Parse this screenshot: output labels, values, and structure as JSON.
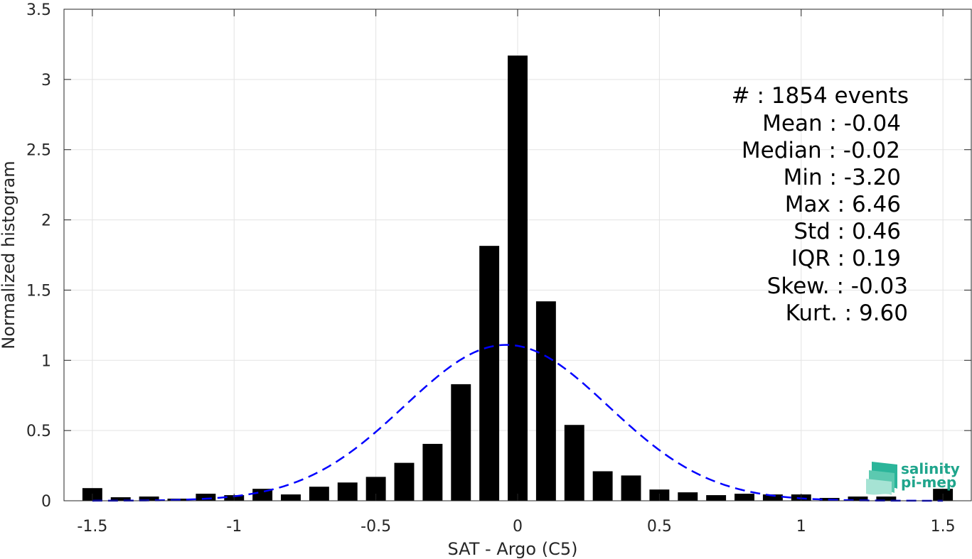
{
  "chart_data": {
    "type": "bar",
    "xlabel": "SAT - Argo (C5)",
    "ylabel": "Normalized histogram",
    "xlim": [
      -1.6,
      1.6
    ],
    "ylim": [
      0,
      3.5
    ],
    "xticks": [
      -1.5,
      -1,
      -0.5,
      0,
      0.5,
      1,
      1.5
    ],
    "xtick_labels": [
      "-1.5",
      "-1",
      "-0.5",
      "0",
      "0.5",
      "1",
      "1.5"
    ],
    "yticks": [
      0,
      0.5,
      1,
      1.5,
      2,
      2.5,
      3,
      3.5
    ],
    "ytick_labels": [
      "0",
      "0.5",
      "1",
      "1.5",
      "2",
      "2.5",
      "3",
      "3.5"
    ],
    "grid": true,
    "bin_width": 0.1,
    "x": [
      -1.5,
      -1.4,
      -1.3,
      -1.2,
      -1.1,
      -1.0,
      -0.9,
      -0.8,
      -0.7,
      -0.6,
      -0.5,
      -0.4,
      -0.3,
      -0.2,
      -0.1,
      0.0,
      0.1,
      0.2,
      0.3,
      0.4,
      0.5,
      0.6,
      0.7,
      0.8,
      0.9,
      1.0,
      1.1,
      1.2,
      1.3,
      1.5
    ],
    "values": [
      0.09,
      0.025,
      0.03,
      0.015,
      0.05,
      0.04,
      0.085,
      0.045,
      0.1,
      0.13,
      0.17,
      0.27,
      0.405,
      0.83,
      1.815,
      3.17,
      1.42,
      0.54,
      0.21,
      0.18,
      0.08,
      0.06,
      0.04,
      0.05,
      0.045,
      0.045,
      0.02,
      0.03,
      0.03,
      0.085
    ],
    "bar_color": "#000000",
    "gaussian_fit": {
      "mean": -0.04,
      "std": 0.36,
      "peak": 1.11,
      "color": "#0000ff",
      "style": "dashed"
    }
  },
  "stats": [
    "#  : 1854 events",
    "Mean : -0.04",
    "Median : -0.02",
    "Min : -3.20",
    "Max : 6.46",
    "Std : 0.46",
    "IQR : 0.19",
    "Skew. : -0.03",
    "Kurt. : 9.60"
  ],
  "logo": {
    "line1": "salinity",
    "line2": "pi-mep",
    "color": "#1fa58c"
  }
}
